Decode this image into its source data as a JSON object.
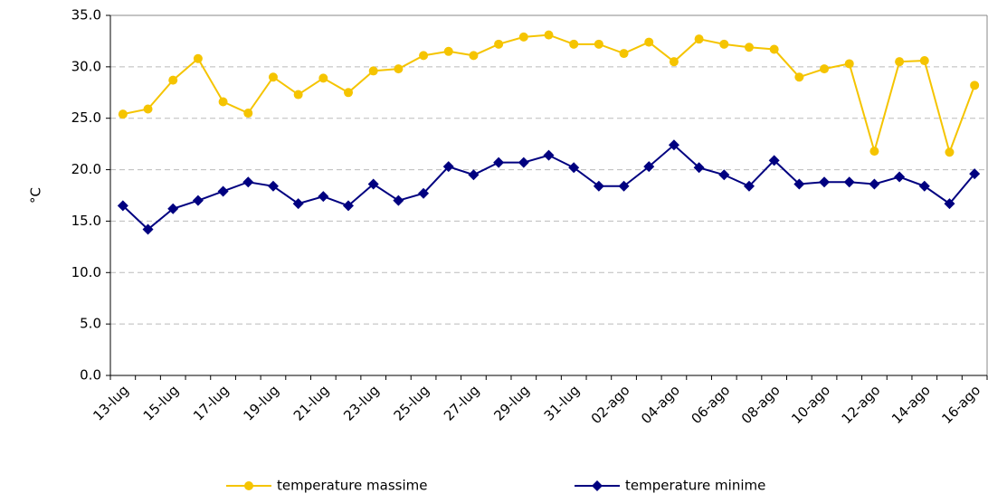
{
  "chart_data": {
    "type": "line",
    "y_label": "°C",
    "categories": [
      "13-lug",
      null,
      "15-lug",
      null,
      "17-lug",
      null,
      "19-lug",
      null,
      "21-lug",
      null,
      "23-lug",
      null,
      "25-lug",
      null,
      "27-lug",
      null,
      "29-lug",
      null,
      "31-lug",
      null,
      "02-ago",
      null,
      "04-ago",
      null,
      "06-ago",
      null,
      "08-ago",
      null,
      "10-ago",
      null,
      "12-ago",
      null,
      "14-ago",
      null,
      "16-ago"
    ],
    "series": [
      {
        "name": "temperature massime",
        "color": "#f5c400",
        "marker": "circle",
        "values": [
          25.4,
          25.9,
          28.7,
          30.8,
          26.6,
          25.5,
          29.0,
          27.3,
          28.9,
          27.5,
          29.6,
          29.8,
          31.1,
          31.5,
          31.1,
          32.2,
          32.9,
          33.1,
          32.2,
          32.2,
          31.3,
          32.4,
          30.5,
          32.7,
          32.2,
          31.9,
          31.7,
          29.0,
          29.8,
          30.3,
          21.8,
          30.5,
          30.6,
          21.7,
          28.2
        ]
      },
      {
        "name": "temperature minime",
        "color": "#000080",
        "marker": "diamond",
        "values": [
          16.5,
          14.2,
          16.2,
          17.0,
          17.9,
          18.8,
          18.4,
          16.7,
          17.4,
          16.5,
          18.6,
          17.0,
          17.7,
          20.3,
          19.5,
          20.7,
          20.7,
          21.4,
          20.2,
          18.4,
          18.4,
          20.3,
          22.4,
          20.2,
          19.5,
          18.4,
          20.9,
          18.6,
          18.8,
          18.8,
          18.6,
          19.3,
          18.4,
          16.7,
          19.6
        ]
      }
    ],
    "ylim": [
      0,
      35
    ],
    "yticks": [
      {
        "value": 0,
        "label": "0.0"
      },
      {
        "value": 5,
        "label": "5.0"
      },
      {
        "value": 10,
        "label": "10.0"
      },
      {
        "value": 15,
        "label": "15.0"
      },
      {
        "value": 20,
        "label": "20.0"
      },
      {
        "value": 25,
        "label": "25.0"
      },
      {
        "value": 30,
        "label": "30.0"
      },
      {
        "value": 35,
        "label": "35.0"
      }
    ],
    "grid": true,
    "legend": "bottom"
  }
}
